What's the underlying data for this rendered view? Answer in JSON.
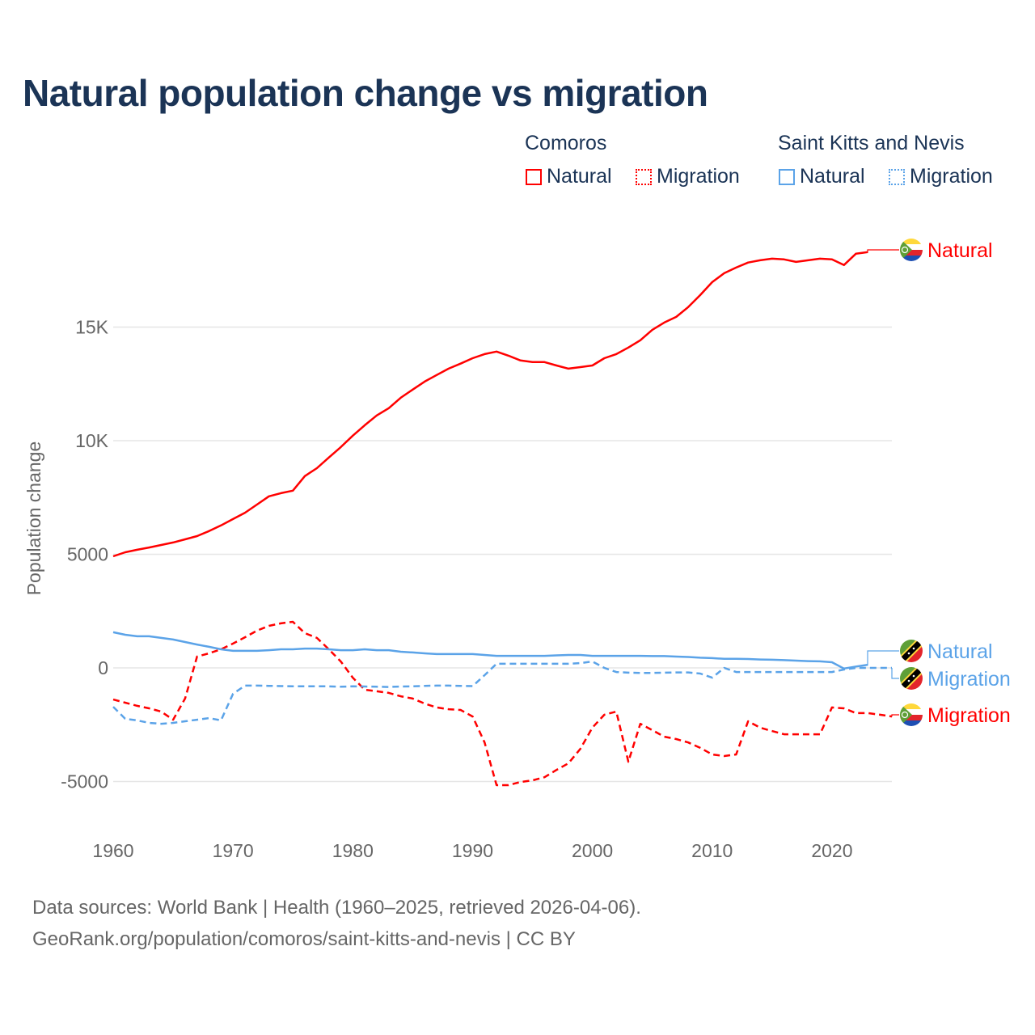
{
  "chart_data": {
    "type": "line",
    "title": "Natural population change vs migration",
    "xlabel": "",
    "ylabel": "Population change",
    "xlim": [
      1960,
      2025
    ],
    "ylim": [
      -6000,
      20000
    ],
    "x_ticks": [
      "1960",
      "1970",
      "1980",
      "1990",
      "2000",
      "2010",
      "2020"
    ],
    "y_ticks": [
      {
        "v": -5000,
        "label": "-5000"
      },
      {
        "v": 0,
        "label": "0"
      },
      {
        "v": 5000,
        "label": "5000"
      },
      {
        "v": 10000,
        "label": "10K"
      },
      {
        "v": 15000,
        "label": "15K"
      }
    ],
    "grid": true,
    "legend": {
      "placement": "top-right",
      "groups": [
        {
          "country": "Comoros",
          "items": [
            "Natural",
            "Migration"
          ]
        },
        {
          "country": "Saint Kitts and Nevis",
          "items": [
            "Natural",
            "Migration"
          ]
        }
      ]
    },
    "series": [
      {
        "name": "Comoros Natural",
        "country": "Comoros",
        "kind": "Natural",
        "color": "#ff0000",
        "dashed": false,
        "end_label": "Natural",
        "start": 1960,
        "values": [
          4910,
          5090,
          5200,
          5300,
          5410,
          5520,
          5660,
          5800,
          6020,
          6270,
          6550,
          6830,
          7190,
          7550,
          7690,
          7800,
          8440,
          8790,
          9260,
          9720,
          10220,
          10680,
          11110,
          11430,
          11890,
          12250,
          12600,
          12890,
          13170,
          13390,
          13630,
          13810,
          13920,
          13740,
          13530,
          13460,
          13460,
          13310,
          13170,
          13240,
          13310,
          13630,
          13810,
          14100,
          14420,
          14880,
          15200,
          15450,
          15880,
          16410,
          16980,
          17370,
          17620,
          17840,
          17940,
          18010,
          17980,
          17870,
          17940,
          18010,
          17980,
          17730,
          18230,
          18300
        ]
      },
      {
        "name": "Comoros Migration",
        "country": "Comoros",
        "kind": "Migration",
        "color": "#ff0000",
        "dashed": true,
        "end_label": "Migration",
        "start": 1960,
        "values": [
          -1390,
          -1530,
          -1670,
          -1780,
          -1920,
          -2280,
          -1350,
          500,
          640,
          820,
          1070,
          1350,
          1640,
          1850,
          1960,
          2030,
          1530,
          1320,
          820,
          280,
          -430,
          -960,
          -1030,
          -1100,
          -1250,
          -1350,
          -1570,
          -1740,
          -1820,
          -1850,
          -2140,
          -3280,
          -5160,
          -5160,
          -5020,
          -4950,
          -4810,
          -4490,
          -4200,
          -3560,
          -2630,
          -2060,
          -1920,
          -4130,
          -2460,
          -2740,
          -3030,
          -3130,
          -3280,
          -3520,
          -3810,
          -3880,
          -3810,
          -2350,
          -2630,
          -2780,
          -2920,
          -2920,
          -2920,
          -2920,
          -1740,
          -1780,
          -1990,
          -1990,
          -2060,
          -2140
        ]
      },
      {
        "name": "Saint Kitts and Nevis Natural",
        "country": "Saint Kitts and Nevis",
        "kind": "Natural",
        "color": "#5ba3e8",
        "dashed": false,
        "end_label": "Natural",
        "start": 1960,
        "values": [
          1570,
          1460,
          1390,
          1390,
          1320,
          1250,
          1140,
          1030,
          930,
          820,
          750,
          750,
          750,
          780,
          820,
          820,
          850,
          850,
          820,
          780,
          780,
          820,
          780,
          780,
          710,
          680,
          640,
          610,
          610,
          610,
          610,
          570,
          530,
          530,
          530,
          530,
          530,
          550,
          570,
          570,
          530,
          530,
          530,
          530,
          530,
          520,
          520,
          500,
          480,
          450,
          430,
          400,
          400,
          390,
          370,
          360,
          340,
          320,
          300,
          290,
          250,
          -30,
          60,
          140
        ]
      },
      {
        "name": "Saint Kitts and Nevis Migration",
        "country": "Saint Kitts and Nevis",
        "kind": "Migration",
        "color": "#5ba3e8",
        "dashed": true,
        "end_label": "Migration",
        "start": 1960,
        "values": [
          -1710,
          -2240,
          -2310,
          -2420,
          -2460,
          -2420,
          -2350,
          -2280,
          -2210,
          -2310,
          -1140,
          -780,
          -780,
          -790,
          -800,
          -810,
          -810,
          -810,
          -810,
          -830,
          -810,
          -820,
          -830,
          -840,
          -820,
          -810,
          -790,
          -780,
          -780,
          -790,
          -800,
          -320,
          180,
          180,
          180,
          180,
          180,
          180,
          180,
          210,
          280,
          0,
          -180,
          -210,
          -220,
          -220,
          -210,
          -200,
          -200,
          -250,
          -430,
          0,
          -180,
          -180,
          -180,
          -180,
          -180,
          -180,
          -180,
          -180,
          -180,
          -70,
          0,
          0,
          0,
          0
        ]
      }
    ]
  },
  "footer": {
    "line1": "Data sources: World Bank | Health (1960–2025, retrieved 2026-04-06).",
    "line2": "GeoRank.org/population/comoros/saint-kitts-and-nevis | CC BY"
  }
}
